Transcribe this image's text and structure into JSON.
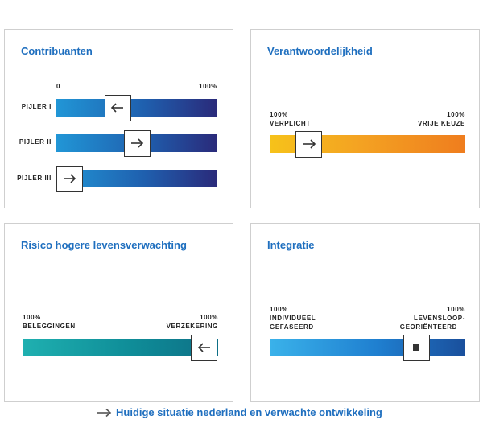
{
  "panels": {
    "contribuanten": {
      "title": "Contribuanten",
      "axis_start": "0",
      "axis_end": "100%",
      "rows": [
        {
          "label": "PIJLER I",
          "marker_position": 0.38,
          "direction": "left"
        },
        {
          "label": "PIJLER II",
          "marker_position": 0.5,
          "direction": "right"
        },
        {
          "label": "PIJLER III",
          "marker_position": 0.08,
          "direction": "right"
        }
      ]
    },
    "verantwoordelijkheid": {
      "title": "Verantwoordelijkheid",
      "left_pct": "100%",
      "left_label": "VERPLICHT",
      "right_pct": "100%",
      "right_label": "VRIJE KEUZE",
      "marker_position": 0.2,
      "direction": "right"
    },
    "risico": {
      "title": "Risico hogere levensverwachting",
      "left_pct": "100%",
      "left_label": "BELEGGINGEN",
      "right_pct": "100%",
      "right_label": "VERZEKERING",
      "marker_position": 0.93,
      "direction": "left"
    },
    "integratie": {
      "title": "Integratie",
      "left_pct": "100%",
      "left_label_1": "INDIVIDUEEL",
      "left_label_2": "GEFASEERD",
      "right_pct": "100%",
      "right_label_1": "LEVENSLOOP-",
      "right_label_2": "GEORIËNTEERD",
      "marker_position": 0.75,
      "direction": "none"
    }
  },
  "legend": {
    "text": "Huidige situatie nederland en verwachte ontwikkeling",
    "icon": "arrow-right-icon"
  },
  "colors": {
    "title": "#1f6fbf",
    "blue_gradient": [
      "#2196d6",
      "#2a2a7a"
    ],
    "orange_gradient": [
      "#f6c21a",
      "#ef7d1e"
    ],
    "teal_gradient": [
      "#1fb0b0",
      "#0d6f86"
    ],
    "light_blue_gradient": [
      "#3ab2ea",
      "#1a4f9c"
    ]
  }
}
